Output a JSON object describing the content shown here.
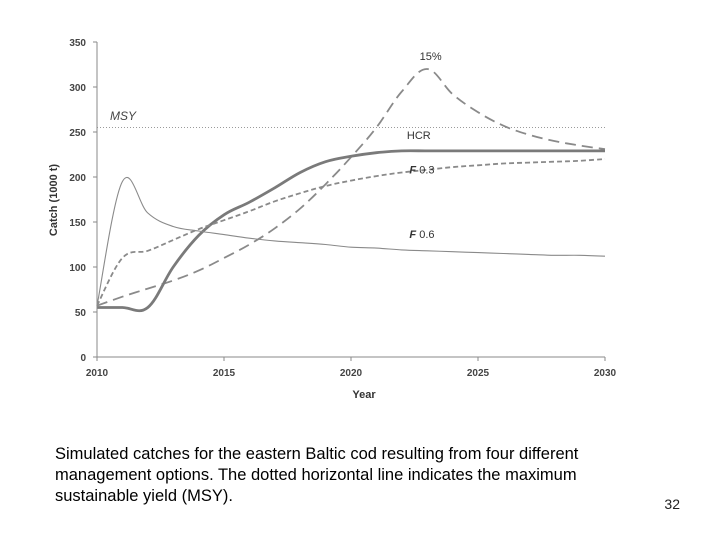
{
  "chart_data": {
    "type": "line",
    "title": "",
    "xlabel": "Year",
    "ylabel": "Catch (1000 t)",
    "xlim": [
      2010,
      2030
    ],
    "ylim": [
      0,
      350
    ],
    "xticks": [
      2010,
      2015,
      2020,
      2025,
      2030
    ],
    "yticks": [
      0,
      50,
      100,
      150,
      200,
      250,
      300,
      350
    ],
    "grid": false,
    "reference_line": {
      "label": "MSY",
      "value": 255
    },
    "series": [
      {
        "name": "15%",
        "style": "long-dash",
        "color": "#8a8a8a",
        "x": [
          2010,
          2011,
          2012,
          2013,
          2014,
          2015,
          2016,
          2017,
          2018,
          2019,
          2020,
          2021,
          2022,
          2023,
          2024,
          2025,
          2026,
          2027,
          2028,
          2029,
          2030
        ],
        "y": [
          57,
          67,
          76,
          85,
          96,
          110,
          125,
          143,
          165,
          192,
          222,
          255,
          295,
          320,
          292,
          272,
          257,
          247,
          240,
          235,
          231
        ]
      },
      {
        "name": "HCR",
        "style": "solid-thick",
        "color": "#7a7a7a",
        "x": [
          2010,
          2011,
          2012,
          2013,
          2014,
          2015,
          2016,
          2017,
          2018,
          2019,
          2020,
          2021,
          2022,
          2023,
          2024,
          2025,
          2026,
          2027,
          2028,
          2029,
          2030
        ],
        "y": [
          55,
          55,
          55,
          100,
          135,
          158,
          172,
          188,
          205,
          217,
          223,
          227,
          229,
          229,
          229,
          229,
          229,
          229,
          229,
          229,
          229
        ]
      },
      {
        "name": "F 0.3",
        "style": "short-dash",
        "color": "#8a8a8a",
        "x": [
          2010,
          2011,
          2012,
          2013,
          2014,
          2015,
          2016,
          2017,
          2018,
          2019,
          2020,
          2021,
          2022,
          2023,
          2024,
          2025,
          2026,
          2027,
          2028,
          2029,
          2030
        ],
        "y": [
          57,
          110,
          118,
          130,
          142,
          152,
          162,
          173,
          182,
          190,
          196,
          201,
          205,
          208,
          211,
          213,
          215,
          216,
          217,
          218,
          220
        ]
      },
      {
        "name": "F 0.6",
        "style": "solid-thin",
        "color": "#8a8a8a",
        "x": [
          2010,
          2011,
          2012,
          2013,
          2014,
          2015,
          2016,
          2017,
          2018,
          2019,
          2020,
          2021,
          2022,
          2023,
          2024,
          2025,
          2026,
          2027,
          2028,
          2029,
          2030
        ],
        "y": [
          57,
          195,
          160,
          145,
          140,
          136,
          132,
          129,
          127,
          125,
          122,
          121,
          119,
          118,
          117,
          116,
          115,
          114,
          113,
          113,
          112
        ]
      }
    ],
    "annotations": [
      {
        "text": "15%",
        "x": 2022.7,
        "y": 330
      },
      {
        "text": "HCR",
        "x": 2022.2,
        "y": 242
      },
      {
        "prefix": "F",
        "text": " 0.3",
        "x": 2022.3,
        "y": 204
      },
      {
        "prefix": "F",
        "text": " 0.6",
        "x": 2022.3,
        "y": 132
      }
    ]
  },
  "caption": "Simulated catches for the eastern Baltic cod resulting from four different management options. The dotted horizontal line indicates the maximum sustainable yield (MSY).",
  "page_number": "32"
}
